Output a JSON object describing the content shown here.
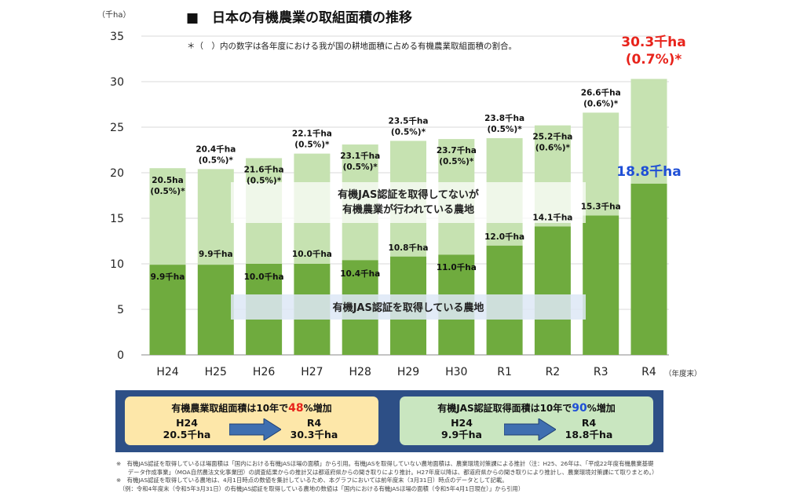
{
  "title": "■　日本の有機農業の取組面積の推移",
  "note": "＊（　）内の数字は各年度における我が国の耕地面積に占める有機農業取組面積の割合。",
  "y_unit": "（千ha）",
  "x_unit": "（年度末）",
  "overlay": {
    "upper_line1": "有機JAS認証を取得してないが",
    "upper_line2": "有機農業が行われている農地",
    "lower": "有機JAS認証を取得している農地"
  },
  "colors": {
    "jas": "#6fab3e",
    "non_jas": "#c6e2b1",
    "highlight_red": "#e8231b",
    "highlight_blue": "#1f4fd6",
    "summary_border": "#2d4f86"
  },
  "chart_data": {
    "type": "bar",
    "stacked": true,
    "title": "■　日本の有機農業の取組面積の推移",
    "ylabel": "（千ha）",
    "xlabel": "（年度末）",
    "ylim": [
      0,
      35
    ],
    "yticks": [
      0,
      5,
      10,
      15,
      20,
      25,
      30,
      35
    ],
    "grid": true,
    "categories": [
      "H24",
      "H25",
      "H26",
      "H27",
      "H28",
      "H29",
      "H30",
      "R1",
      "R2",
      "R3",
      "R4"
    ],
    "series": [
      {
        "values": [
          9.9,
          9.9,
          10.0,
          10.0,
          10.4,
          10.8,
          11.0,
          12.0,
          14.1,
          15.3,
          18.8
        ]
      },
      {
        "values": [
          10.6,
          10.5,
          11.6,
          12.1,
          12.7,
          12.7,
          12.7,
          11.8,
          11.1,
          11.3,
          11.5
        ]
      }
    ],
    "totals": [
      20.5,
      20.4,
      21.6,
      22.1,
      23.1,
      23.5,
      23.7,
      23.8,
      25.2,
      26.6,
      30.3
    ],
    "jas_labels": [
      "9.9千ha",
      "9.9千ha",
      "10.0千ha",
      "10.0千ha",
      "10.4千ha",
      "10.8千ha",
      "11.0千ha",
      "12.0千ha",
      "14.1千ha",
      "15.3千ha",
      "18.8千ha"
    ],
    "total_labels": [
      "20.5ha",
      "20.4千ha",
      "21.6千ha",
      "22.1千ha",
      "23.1千ha",
      "23.5千ha",
      "23.7千ha",
      "23.8千ha",
      "25.2千ha",
      "26.6千ha",
      "30.3千ha"
    ],
    "share_labels": [
      "(0.5%)*",
      "(0.5%)*",
      "(0.5%)*",
      "(0.5%)*",
      "(0.5%)*",
      "(0.5%)*",
      "(0.5%)*",
      "(0.5%)*",
      "(0.6%)*",
      "(0.6%)*",
      "(0.7%)*"
    ]
  },
  "summary": {
    "left": {
      "head_pre": "有機農業取組面積は10年で",
      "pct": "48",
      "head_post": "%増加",
      "from_year": "H24",
      "from_value": "20.5千ha",
      "to_year": "R4",
      "to_value": "30.3千ha"
    },
    "right": {
      "head_pre": "有機JAS認証取得面積は10年で",
      "pct": "90",
      "head_post": "%増加",
      "from_year": "H24",
      "from_value": "9.9千ha",
      "to_year": "R4",
      "to_value": "18.8千ha"
    }
  },
  "footnotes": [
    "※　有機JAS認証を取得しているほ場面積は「国内における有機JASほ場の面積」から引用。有機JASを取得していない農地面積は、農業環境対策課による推計（注：H25、26年は、「平成22年度有機農業基礎",
    "　　データ作成事業」（MOA自然農法文化事業団）の調査結果からの推計又は都道府県からの聞き取りにより推計。H27年度以降は、都道府県からの聞き取りにより推計し、農業環境対策課にて取りまとめ。）",
    "※　有機JAS認証を取得している農地は、4月1日時点の数値を集計しているため、本グラフにおいては前年度末（3月31日）時点のデータとして記載。",
    "　（例：令和4年度末（令和5年3月31日）の有機JAS認証を取得している農地の数値は「国内における有機JASほ場の面積（令和5年4月1日現在）」から引用）"
  ]
}
